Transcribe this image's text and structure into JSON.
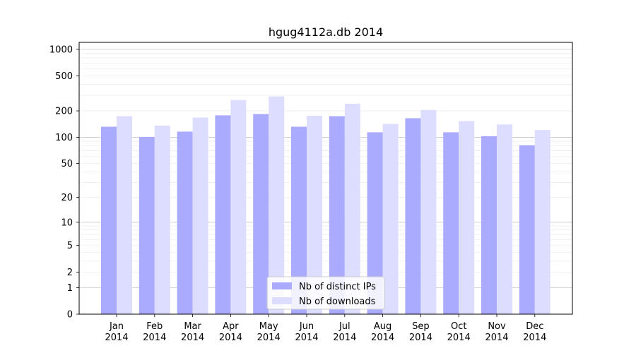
{
  "chart_data": {
    "type": "bar",
    "title": "hgug4112a.db 2014",
    "xlabel": "",
    "ylabel": "",
    "y_scale": "log1p",
    "ylim": [
      0,
      1200
    ],
    "y_ticks": [
      0,
      1,
      2,
      5,
      10,
      20,
      50,
      100,
      200,
      500,
      1000
    ],
    "grid": true,
    "legend_position": "bottom-center",
    "categories": [
      [
        "Jan",
        "2014"
      ],
      [
        "Feb",
        "2014"
      ],
      [
        "Mar",
        "2014"
      ],
      [
        "Apr",
        "2014"
      ],
      [
        "May",
        "2014"
      ],
      [
        "Jun",
        "2014"
      ],
      [
        "Jul",
        "2014"
      ],
      [
        "Aug",
        "2014"
      ],
      [
        "Sep",
        "2014"
      ],
      [
        "Oct",
        "2014"
      ],
      [
        "Nov",
        "2014"
      ],
      [
        "Dec",
        "2014"
      ]
    ],
    "series": [
      {
        "name": "Nb of distinct IPs",
        "color": "#aaaaff",
        "values": [
          132,
          101,
          116,
          178,
          184,
          132,
          174,
          114,
          165,
          114,
          103,
          81
        ]
      },
      {
        "name": "Nb of downloads",
        "color": "#ddddff",
        "values": [
          174,
          136,
          168,
          266,
          292,
          176,
          241,
          142,
          205,
          153,
          140,
          121
        ]
      }
    ]
  }
}
